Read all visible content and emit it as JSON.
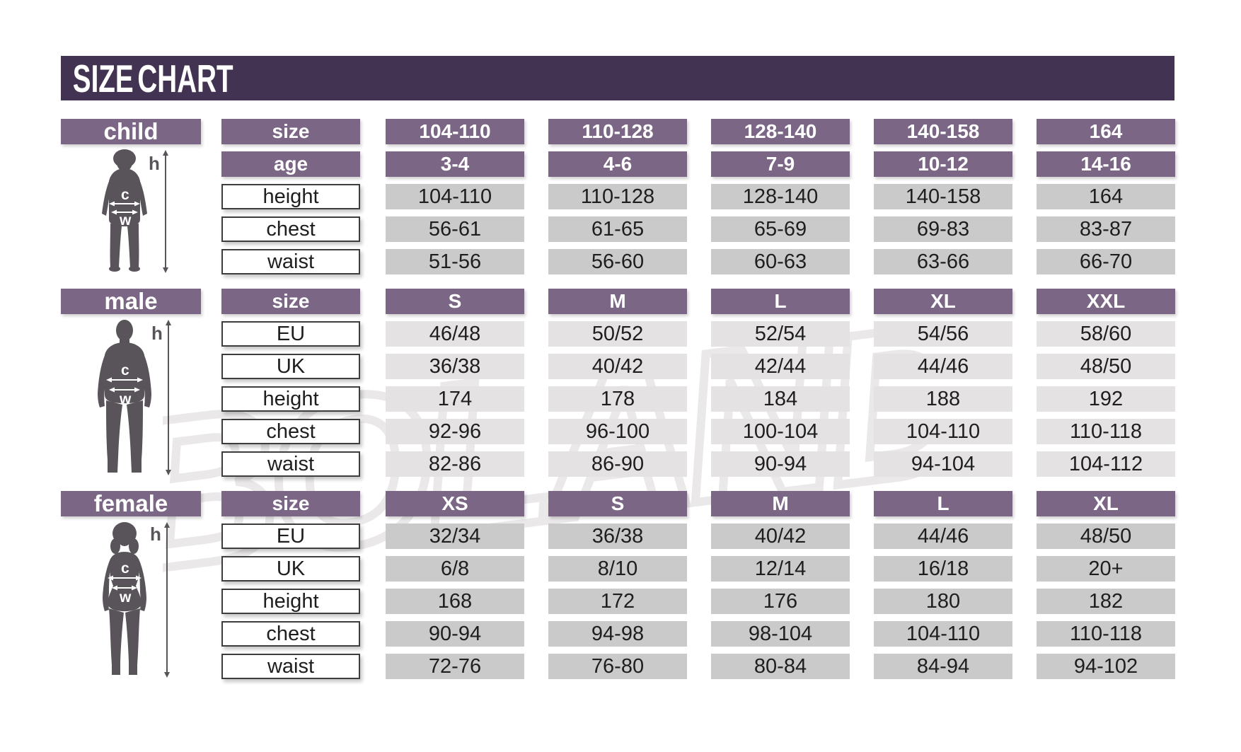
{
  "title": "SIZE CHART",
  "watermark_text": "BOLAND",
  "colors": {
    "header-bg": "#433352",
    "band-bg": "#7b6685",
    "cell-grey": "#cacaca",
    "cell-light-grey": "#e4e2e3",
    "silhouette": "#59545a",
    "watermark": "#eae8e8",
    "label-border": "#3d3d3d",
    "text": "#1e1e1e"
  },
  "figure_labels": {
    "height": "h",
    "chest": "c",
    "waist": "w"
  },
  "sections": [
    {
      "id": "child",
      "label": "child",
      "header_rows": [
        {
          "label": "size",
          "values": [
            "104-110",
            "110-128",
            "128-140",
            "140-158",
            "164"
          ]
        },
        {
          "label": "age",
          "values": [
            "3-4",
            "4-6",
            "7-9",
            "10-12",
            "14-16"
          ]
        }
      ],
      "rows": [
        {
          "label": "height",
          "values": [
            "104-110",
            "110-128",
            "128-140",
            "140-158",
            "164"
          ]
        },
        {
          "label": "chest",
          "values": [
            "56-61",
            "61-65",
            "65-69",
            "69-83",
            "83-87"
          ]
        },
        {
          "label": "waist",
          "values": [
            "51-56",
            "56-60",
            "60-63",
            "63-66",
            "66-70"
          ]
        }
      ]
    },
    {
      "id": "male",
      "label": "male",
      "header_rows": [
        {
          "label": "size",
          "values": [
            "S",
            "M",
            "L",
            "XL",
            "XXL"
          ]
        }
      ],
      "rows": [
        {
          "label": "EU",
          "values": [
            "46/48",
            "50/52",
            "52/54",
            "54/56",
            "58/60"
          ]
        },
        {
          "label": "UK",
          "values": [
            "36/38",
            "40/42",
            "42/44",
            "44/46",
            "48/50"
          ]
        },
        {
          "label": "height",
          "values": [
            "174",
            "178",
            "184",
            "188",
            "192"
          ]
        },
        {
          "label": "chest",
          "values": [
            "92-96",
            "96-100",
            "100-104",
            "104-110",
            "110-118"
          ]
        },
        {
          "label": "waist",
          "values": [
            "82-86",
            "86-90",
            "90-94",
            "94-104",
            "104-112"
          ]
        }
      ]
    },
    {
      "id": "female",
      "label": "female",
      "header_rows": [
        {
          "label": "size",
          "values": [
            "XS",
            "S",
            "M",
            "L",
            "XL"
          ]
        }
      ],
      "rows": [
        {
          "label": "EU",
          "values": [
            "32/34",
            "36/38",
            "40/42",
            "44/46",
            "48/50"
          ]
        },
        {
          "label": "UK",
          "values": [
            "6/8",
            "8/10",
            "12/14",
            "16/18",
            "20+"
          ]
        },
        {
          "label": "height",
          "values": [
            "168",
            "172",
            "176",
            "180",
            "182"
          ]
        },
        {
          "label": "chest",
          "values": [
            "90-94",
            "94-98",
            "98-104",
            "104-110",
            "110-118"
          ]
        },
        {
          "label": "waist",
          "values": [
            "72-76",
            "76-80",
            "80-84",
            "84-94",
            "94-102"
          ]
        }
      ]
    }
  ],
  "chart_data": [
    {
      "type": "table",
      "title": "child",
      "columns": [
        "size",
        "104-110",
        "110-128",
        "128-140",
        "140-158",
        "164"
      ],
      "rows": [
        [
          "age",
          "3-4",
          "4-6",
          "7-9",
          "10-12",
          "14-16"
        ],
        [
          "height",
          "104-110",
          "110-128",
          "128-140",
          "140-158",
          "164"
        ],
        [
          "chest",
          "56-61",
          "61-65",
          "65-69",
          "69-83",
          "83-87"
        ],
        [
          "waist",
          "51-56",
          "56-60",
          "60-63",
          "63-66",
          "66-70"
        ]
      ]
    },
    {
      "type": "table",
      "title": "male",
      "columns": [
        "size",
        "S",
        "M",
        "L",
        "XL",
        "XXL"
      ],
      "rows": [
        [
          "EU",
          "46/48",
          "50/52",
          "52/54",
          "54/56",
          "58/60"
        ],
        [
          "UK",
          "36/38",
          "40/42",
          "42/44",
          "44/46",
          "48/50"
        ],
        [
          "height",
          "174",
          "178",
          "184",
          "188",
          "192"
        ],
        [
          "chest",
          "92-96",
          "96-100",
          "100-104",
          "104-110",
          "110-118"
        ],
        [
          "waist",
          "82-86",
          "86-90",
          "90-94",
          "94-104",
          "104-112"
        ]
      ]
    },
    {
      "type": "table",
      "title": "female",
      "columns": [
        "size",
        "XS",
        "S",
        "M",
        "L",
        "XL"
      ],
      "rows": [
        [
          "EU",
          "32/34",
          "36/38",
          "40/42",
          "44/46",
          "48/50"
        ],
        [
          "UK",
          "6/8",
          "8/10",
          "12/14",
          "16/18",
          "20+"
        ],
        [
          "height",
          "168",
          "172",
          "176",
          "180",
          "182"
        ],
        [
          "chest",
          "90-94",
          "94-98",
          "98-104",
          "104-110",
          "110-118"
        ],
        [
          "waist",
          "72-76",
          "76-80",
          "80-84",
          "84-94",
          "94-102"
        ]
      ]
    }
  ]
}
